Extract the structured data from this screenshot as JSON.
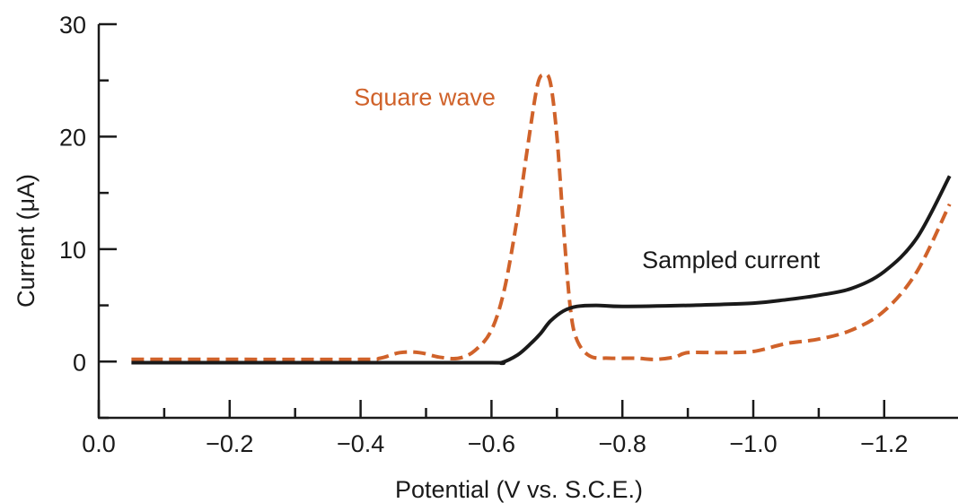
{
  "chart_data": {
    "type": "line",
    "xlabel": "Potential (V vs. S.C.E.)",
    "ylabel": "Current (μA)",
    "xlim": [
      0.0,
      -1.3
    ],
    "ylim": [
      -5,
      30
    ],
    "x_reversed": true,
    "x_ticks": [
      {
        "value": 0.0,
        "label": "0.0"
      },
      {
        "value": -0.2,
        "label": "−0.2"
      },
      {
        "value": -0.4,
        "label": "−0.4"
      },
      {
        "value": -0.6,
        "label": "−0.6"
      },
      {
        "value": -0.8,
        "label": "−0.8"
      },
      {
        "value": -1.0,
        "label": "−1.0"
      },
      {
        "value": -1.2,
        "label": "−1.2"
      }
    ],
    "x_minor_ticks": [
      -0.1,
      -0.3,
      -0.5,
      -0.7,
      -0.9,
      -1.1
    ],
    "y_ticks": [
      {
        "value": 0,
        "label": "0"
      },
      {
        "value": 10,
        "label": "10"
      },
      {
        "value": 20,
        "label": "20"
      },
      {
        "value": 30,
        "label": "30"
      }
    ],
    "y_minor_ticks": [
      -5,
      5,
      15,
      25
    ],
    "grid": false,
    "legend": "none",
    "series": [
      {
        "name": "Square wave",
        "color": "#d0622a",
        "style": "dashed",
        "label_anchor": [
          -0.39,
          22.8
        ],
        "x": [
          -0.05,
          -0.2,
          -0.4,
          -0.43,
          -0.46,
          -0.49,
          -0.52,
          -0.55,
          -0.575,
          -0.6,
          -0.62,
          -0.64,
          -0.655,
          -0.67,
          -0.68,
          -0.69,
          -0.7,
          -0.71,
          -0.72,
          -0.73,
          -0.75,
          -0.78,
          -0.82,
          -0.85,
          -0.88,
          -0.9,
          -0.95,
          -1.0,
          -1.05,
          -1.1,
          -1.15,
          -1.2,
          -1.25,
          -1.3
        ],
        "y": [
          0.2,
          0.2,
          0.2,
          0.3,
          0.8,
          0.8,
          0.4,
          0.3,
          1.0,
          2.8,
          6.5,
          13.0,
          19.0,
          24.5,
          25.5,
          24.8,
          20.0,
          12.0,
          5.0,
          2.0,
          0.5,
          0.3,
          0.3,
          0.2,
          0.4,
          0.8,
          0.8,
          0.9,
          1.6,
          2.0,
          2.8,
          4.5,
          8.0,
          14.0
        ]
      },
      {
        "name": "Sampled current",
        "color": "#1a1a1a",
        "style": "solid",
        "label_anchor": [
          -0.83,
          8.3
        ],
        "x": [
          -0.05,
          -0.2,
          -0.4,
          -0.6,
          -0.615,
          -0.64,
          -0.66,
          -0.675,
          -0.69,
          -0.71,
          -0.73,
          -0.76,
          -0.8,
          -0.9,
          -1.0,
          -1.05,
          -1.1,
          -1.15,
          -1.2,
          -1.25,
          -1.3
        ],
        "y": [
          -0.1,
          -0.1,
          -0.1,
          -0.1,
          -0.1,
          0.6,
          1.6,
          2.5,
          3.6,
          4.5,
          4.9,
          5.0,
          4.9,
          5.0,
          5.2,
          5.5,
          5.9,
          6.5,
          8.0,
          11.0,
          16.5
        ]
      }
    ]
  }
}
